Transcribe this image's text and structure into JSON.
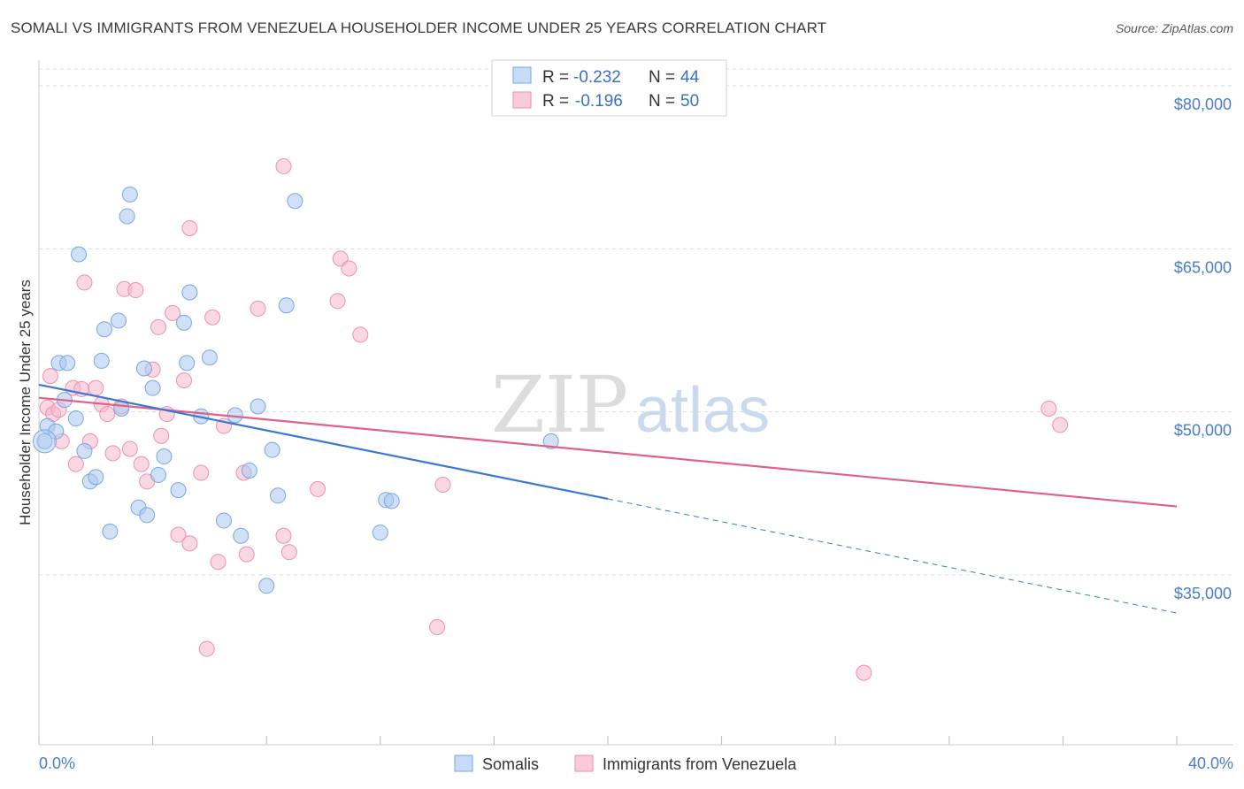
{
  "title": "SOMALI VS IMMIGRANTS FROM VENEZUELA HOUSEHOLDER INCOME UNDER 25 YEARS CORRELATION CHART",
  "source": "Source: ZipAtlas.com",
  "watermark": {
    "zip": "ZIP",
    "atlas": "atlas"
  },
  "colors": {
    "somali_fill": "#a9c8f0",
    "somali_stroke": "#7aa6de",
    "somali_line": "#3a78d4",
    "venezuela_fill": "#f6b8cc",
    "venezuela_stroke": "#ec90ae",
    "venezuela_line": "#e0608a",
    "tick_text": "#4a7cc9"
  },
  "legend": {
    "r_label": "R =",
    "n_label": "N =",
    "somali": {
      "r": "-0.232",
      "n": "44"
    },
    "venezuela": {
      "r": "-0.196",
      "n": "50"
    }
  },
  "chart_data": {
    "type": "scatter",
    "title": "SOMALI VS IMMIGRANTS FROM VENEZUELA HOUSEHOLDER INCOME UNDER 25 YEARS CORRELATION CHART",
    "xlabel": "",
    "ylabel": "Householder Income Under 25 years",
    "xlim": [
      0,
      40
    ],
    "ylim": [
      20000,
      83000
    ],
    "x_tick_labels": [
      "0.0%",
      "40.0%"
    ],
    "y_ticks": [
      35000,
      50000,
      65000,
      80000
    ],
    "y_tick_labels": [
      "$35,000",
      "$50,000",
      "$65,000",
      "$80,000"
    ],
    "series": [
      {
        "name": "Somalis",
        "points": [
          [
            0.2,
            47300
          ],
          [
            0.3,
            48700
          ],
          [
            0.6,
            48200
          ],
          [
            0.7,
            54500
          ],
          [
            0.9,
            51100
          ],
          [
            1.0,
            54500
          ],
          [
            1.3,
            49400
          ],
          [
            1.4,
            64500
          ],
          [
            1.6,
            46400
          ],
          [
            1.8,
            43600
          ],
          [
            2.0,
            44000
          ],
          [
            2.2,
            54700
          ],
          [
            2.3,
            57600
          ],
          [
            2.5,
            39000
          ],
          [
            2.8,
            58400
          ],
          [
            2.9,
            50300
          ],
          [
            3.1,
            68000
          ],
          [
            3.2,
            70000
          ],
          [
            3.5,
            41200
          ],
          [
            3.8,
            40500
          ],
          [
            3.7,
            54000
          ],
          [
            4.0,
            52200
          ],
          [
            4.2,
            44200
          ],
          [
            4.4,
            45900
          ],
          [
            4.9,
            42800
          ],
          [
            5.1,
            58200
          ],
          [
            5.2,
            54500
          ],
          [
            5.3,
            61000
          ],
          [
            5.7,
            49600
          ],
          [
            6.0,
            55000
          ],
          [
            6.5,
            40000
          ],
          [
            6.9,
            49700
          ],
          [
            7.1,
            38600
          ],
          [
            7.4,
            44600
          ],
          [
            7.7,
            50500
          ],
          [
            8.0,
            34000
          ],
          [
            8.2,
            46500
          ],
          [
            8.4,
            42300
          ],
          [
            8.7,
            59800
          ],
          [
            9.0,
            69400
          ],
          [
            12.0,
            38900
          ],
          [
            12.2,
            41900
          ],
          [
            12.4,
            41800
          ],
          [
            18.0,
            47300
          ]
        ]
      },
      {
        "name": "Immigrants from Venezuela",
        "points": [
          [
            0.3,
            50400
          ],
          [
            0.4,
            53300
          ],
          [
            0.5,
            49800
          ],
          [
            0.7,
            50200
          ],
          [
            0.8,
            47300
          ],
          [
            1.2,
            52200
          ],
          [
            1.3,
            45200
          ],
          [
            1.5,
            52100
          ],
          [
            1.6,
            61900
          ],
          [
            1.8,
            47300
          ],
          [
            2.0,
            52200
          ],
          [
            2.2,
            50700
          ],
          [
            2.4,
            49800
          ],
          [
            2.6,
            46200
          ],
          [
            2.9,
            50500
          ],
          [
            3.0,
            61300
          ],
          [
            3.2,
            46600
          ],
          [
            3.4,
            61200
          ],
          [
            3.6,
            45200
          ],
          [
            3.8,
            43600
          ],
          [
            4.0,
            53900
          ],
          [
            4.2,
            57800
          ],
          [
            4.3,
            47800
          ],
          [
            4.5,
            49800
          ],
          [
            4.7,
            59100
          ],
          [
            4.9,
            38700
          ],
          [
            5.1,
            52900
          ],
          [
            5.3,
            66900
          ],
          [
            5.3,
            37900
          ],
          [
            5.7,
            44400
          ],
          [
            5.9,
            28200
          ],
          [
            6.1,
            58700
          ],
          [
            6.3,
            36200
          ],
          [
            6.5,
            48700
          ],
          [
            7.2,
            44400
          ],
          [
            7.3,
            36900
          ],
          [
            7.7,
            59500
          ],
          [
            8.6,
            72600
          ],
          [
            8.6,
            38600
          ],
          [
            8.8,
            37100
          ],
          [
            9.8,
            42900
          ],
          [
            10.5,
            60200
          ],
          [
            10.6,
            64100
          ],
          [
            10.9,
            63200
          ],
          [
            11.3,
            57100
          ],
          [
            14.0,
            30200
          ],
          [
            14.2,
            43300
          ],
          [
            29.0,
            26000
          ],
          [
            35.5,
            50300
          ],
          [
            35.9,
            48800
          ]
        ]
      }
    ],
    "trend_lines": [
      {
        "name": "Somalis",
        "x_start": 0,
        "y_start": 52500,
        "x_solid_end": 20,
        "y_solid_end": 42000,
        "x_dash_end": 40,
        "y_dash_end": 31500
      },
      {
        "name": "Immigrants from Venezuela",
        "x_start": 0,
        "y_start": 51300,
        "x_end": 40,
        "y_end": 41300
      }
    ],
    "legend_position": "top-center",
    "grid": true
  },
  "bottom_legend": [
    {
      "label": "Somalis"
    },
    {
      "label": "Immigrants from Venezuela"
    }
  ]
}
